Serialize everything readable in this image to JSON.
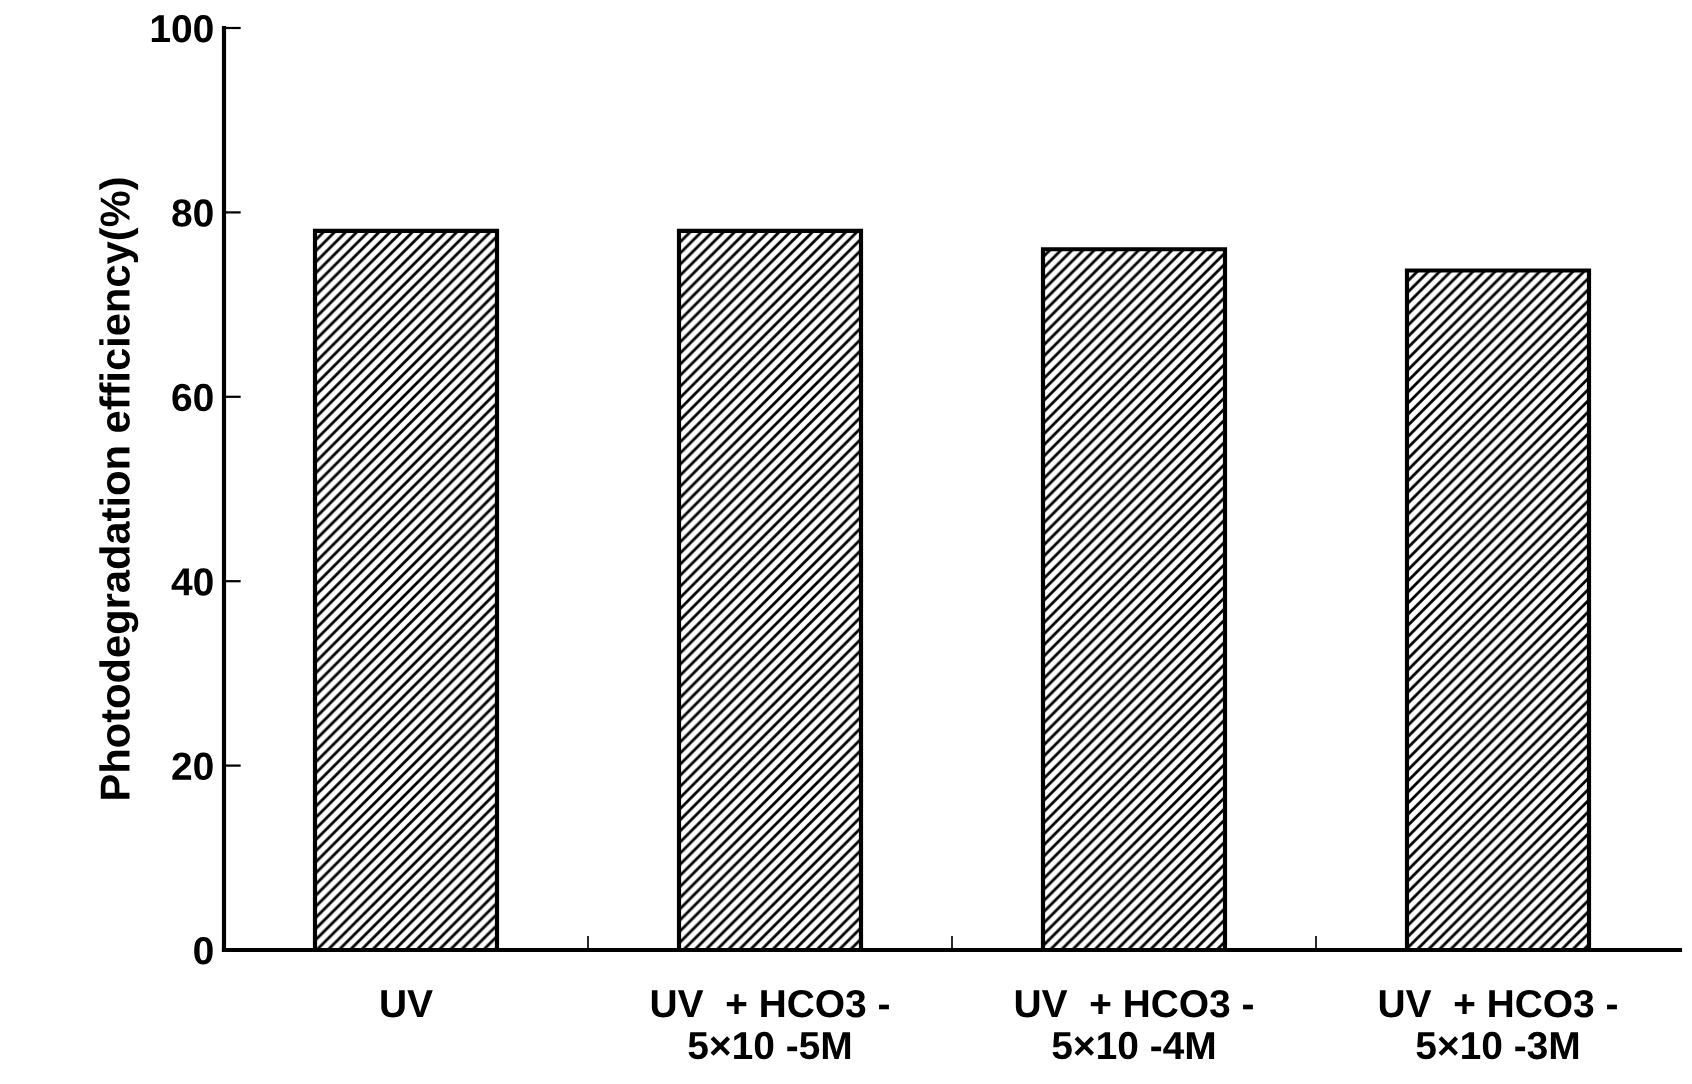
{
  "chart_data": {
    "type": "bar",
    "ylabel": "Photodegradation efficiency(%)",
    "categories": [
      "UV",
      "UV  + HCO3 -\n5×10 -5M",
      "UV  + HCO3 -\n5×10 -4M",
      "UV  + HCO3 -\n5×10 -3M"
    ],
    "values": [
      78,
      78,
      76,
      73.7
    ],
    "color": "#000000",
    "ylim": [
      0,
      100
    ],
    "yticks": [
      0,
      20,
      40,
      60,
      80,
      100
    ],
    "grid": false,
    "legend": false
  }
}
